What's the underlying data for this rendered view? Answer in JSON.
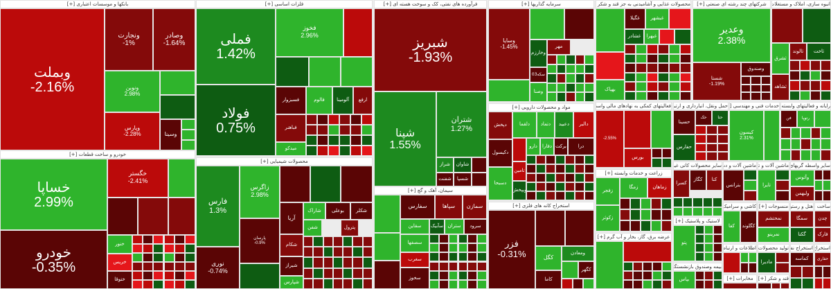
{
  "palette": {
    "R1": "#5a0505",
    "R2": "#840a0a",
    "R3": "#bb0a0a",
    "R4": "#e5161b",
    "G1": "#0e5c12",
    "G2": "#1d8a1f",
    "G3": "#2fb42c"
  },
  "expand_label": "[+]",
  "sectors": [
    {
      "title": "بانکها و موسسات اعتباری",
      "tiles": [
        {
          "s": "وبملت",
          "c": "-2.16%",
          "k": "R3"
        },
        {
          "s": "ونجارت",
          "c": "-1%",
          "k": "R2"
        },
        {
          "s": "وصادر",
          "c": "-1.64%",
          "k": "R2"
        },
        {
          "s": "ونوین",
          "c": "2.98%",
          "k": "G3"
        },
        {
          "s": "",
          "c": "",
          "k": "G3"
        },
        {
          "s": "",
          "c": "",
          "k": "G1"
        },
        {
          "s": "وپارس",
          "c": "-2.28%",
          "k": "R3"
        },
        {
          "s": "وسینا",
          "c": "",
          "k": "R1"
        }
      ],
      "filler": [
        "G3",
        "R1",
        "G3",
        "G1"
      ]
    },
    {
      "title": "خودرو و ساخت قطعات",
      "tiles": [
        {
          "s": "خساپا",
          "c": "2.99%",
          "k": "G3"
        },
        {
          "s": "خودرو",
          "c": "-0.35%",
          "k": "R1"
        },
        {
          "s": "خگستر",
          "c": "-2.41%",
          "k": "R3"
        },
        {
          "s": "",
          "c": "",
          "k": "G3"
        },
        {
          "s": "",
          "c": "",
          "k": "R1"
        },
        {
          "s": "",
          "c": "",
          "k": "R2"
        },
        {
          "s": "",
          "c": "",
          "k": "R2"
        },
        {
          "s": "خنور",
          "c": "",
          "k": "G3"
        },
        {
          "s": "خریس",
          "c": "",
          "k": "R4"
        },
        {
          "s": "ختوقا",
          "c": "",
          "k": "R1"
        }
      ],
      "filler": [
        "R3",
        "G1",
        "R1",
        "R2",
        "R4",
        "R3",
        "G3",
        "R2",
        "R1",
        "R4",
        "G1",
        "R2"
      ]
    },
    {
      "title": "فلزات اساسی",
      "tiles": [
        {
          "s": "فملی",
          "c": "1.42%",
          "k": "G2"
        },
        {
          "s": "فولاد",
          "c": "0.75%",
          "k": "G1"
        },
        {
          "s": "فخوز",
          "c": "2.96%",
          "k": "G3"
        },
        {
          "s": "",
          "c": "",
          "k": "R3"
        },
        {
          "s": "",
          "c": "",
          "k": "G1"
        },
        {
          "s": "",
          "c": "",
          "k": "G3"
        },
        {
          "s": "",
          "c": "",
          "k": "G3"
        },
        {
          "s": "فسبزوار",
          "c": "",
          "k": "R1"
        },
        {
          "s": "فالوم",
          "c": "",
          "k": "G3"
        },
        {
          "s": "آلومینا",
          "c": "",
          "k": "G1"
        },
        {
          "s": "ارفع",
          "c": "",
          "k": "R2"
        },
        {
          "s": "فباهنر",
          "c": "",
          "k": "R2"
        },
        {
          "s": "میدکو",
          "c": "",
          "k": "G3"
        }
      ],
      "filler": [
        "R2",
        "G3",
        "R1",
        "G1",
        "R3",
        "R2",
        "G1",
        "R4",
        "R1",
        "R2",
        "G1",
        "R3"
      ]
    },
    {
      "title": "محصولات شیمیایی",
      "tiles": [
        {
          "s": "فارس",
          "c": "1.3%",
          "k": "G2"
        },
        {
          "s": "نوری",
          "c": "-0.74%",
          "k": "R1"
        },
        {
          "s": "زاگرس",
          "c": "2.98%",
          "k": "G3"
        },
        {
          "s": "پارسان",
          "c": "-0.9%",
          "k": "R1"
        },
        {
          "s": "",
          "c": "",
          "k": "G1"
        },
        {
          "s": "",
          "c": "",
          "k": "R1"
        },
        {
          "s": "",
          "c": "",
          "k": "G1"
        },
        {
          "s": "",
          "c": "",
          "k": "R1"
        },
        {
          "s": "آریا",
          "c": "",
          "k": "R1"
        },
        {
          "s": "شاراک",
          "c": "",
          "k": "G3"
        },
        {
          "s": "بوعلی",
          "c": "",
          "k": "R1"
        },
        {
          "s": "شکلر",
          "c": "",
          "k": "R1"
        },
        {
          "s": "شفن",
          "c": "",
          "k": "G3"
        },
        {
          "s": "پترول",
          "c": "",
          "k": "R2"
        },
        {
          "s": "شکام",
          "c": "",
          "k": "R2"
        },
        {
          "s": "شیراز",
          "c": "",
          "k": "R1"
        },
        {
          "s": "شپارس",
          "c": "",
          "k": "G3"
        }
      ],
      "filler": [
        "R2",
        "G2",
        "R1",
        "G3",
        "R2",
        "G1",
        "R3",
        "R1",
        "G1",
        "R2",
        "G3",
        "R1"
      ]
    },
    {
      "title": "فرآورده های نفتی، کک و سوخت هسته ای",
      "tiles": [
        {
          "s": "شبریز",
          "c": "-1.93%",
          "k": "R2"
        },
        {
          "s": "شپنا",
          "c": "1.55%",
          "k": "G2"
        },
        {
          "s": "شتران",
          "c": "1.27%",
          "k": "G2"
        },
        {
          "s": "شراز",
          "c": "",
          "k": "G2"
        },
        {
          "s": "شاوان",
          "c": "",
          "k": "G1"
        },
        {
          "s": "",
          "c": "",
          "k": "R1"
        },
        {
          "s": "شفنت",
          "c": "",
          "k": "R1"
        },
        {
          "s": "شسپا",
          "c": "",
          "k": "R1"
        },
        {
          "s": "",
          "c": "",
          "k": "R1"
        }
      ],
      "filler": []
    },
    {
      "title": "سیمان، آهک و گچ",
      "tiles": [
        {
          "s": "",
          "c": "",
          "k": "G3"
        },
        {
          "s": "سفارس",
          "c": "",
          "k": "R1"
        },
        {
          "s": "سپاها",
          "c": "",
          "k": "R2"
        },
        {
          "s": "سمازن",
          "c": "",
          "k": "R2"
        },
        {
          "s": "سقاین",
          "c": "",
          "k": "G3"
        },
        {
          "s": "سآبیک",
          "c": "",
          "k": "G1"
        },
        {
          "s": "ستران",
          "c": "",
          "k": "G3"
        },
        {
          "s": "سرود",
          "c": "",
          "k": "R1"
        },
        {
          "s": "",
          "c": "",
          "k": "G3"
        },
        {
          "s": "سصفها",
          "c": "",
          "k": "G3"
        },
        {
          "s": "سغرب",
          "c": "",
          "k": "R3"
        },
        {
          "s": "سخوز",
          "c": "",
          "k": "R1"
        },
        {
          "s": "",
          "c": "",
          "k": "R1"
        }
      ],
      "filler": [
        "G1",
        "G3",
        "R1",
        "R2",
        "G3",
        "R1",
        "G1",
        "R2",
        "R1",
        "G3",
        "G1",
        "R2"
      ]
    },
    {
      "title": "سرمایه گذاریها",
      "tiles": [
        {
          "s": "وسایا",
          "c": "-1.45%",
          "k": "R2"
        },
        {
          "s": "",
          "c": "",
          "k": "G3"
        },
        {
          "s": "",
          "c": "",
          "k": "R1"
        },
        {
          "s": "وخارزم",
          "c": "",
          "k": "G1"
        },
        {
          "s": "مهر",
          "c": "",
          "k": "R2"
        },
        {
          "s": "03سکه",
          "c": "",
          "k": "R1"
        },
        {
          "s": "",
          "c": "",
          "k": "G3"
        },
        {
          "s": "وصنا",
          "c": "",
          "k": "G3"
        }
      ],
      "filler": [
        "R2",
        "R1",
        "G3",
        "R3",
        "G1",
        "R2",
        "G3",
        "R1",
        "G3",
        "R1",
        "G1",
        "R2"
      ]
    },
    {
      "title": "مواد و محصولات دارویی",
      "tiles": [
        {
          "s": "دپخش",
          "c": "",
          "k": "R2"
        },
        {
          "s": "دلقما",
          "c": "",
          "k": "G3"
        },
        {
          "s": "دتماد",
          "c": "",
          "k": "G3"
        },
        {
          "s": "دعبید",
          "c": "",
          "k": "G2"
        },
        {
          "s": "دالبر",
          "c": "",
          "k": "R3"
        },
        {
          "s": "دکیسول",
          "c": "",
          "k": "R1"
        },
        {
          "s": "",
          "c": "",
          "k": "R3"
        },
        {
          "s": "دارو",
          "c": "",
          "k": "G3"
        },
        {
          "s": "دفارا",
          "c": "",
          "k": "G3"
        },
        {
          "s": "برکت",
          "c": "",
          "k": "R1"
        },
        {
          "s": "درا",
          "c": "",
          "k": "R1"
        },
        {
          "s": "دسبحا",
          "c": "",
          "k": "G3"
        },
        {
          "s": "تامین",
          "c": "",
          "k": "R3"
        },
        {
          "s": "ویپخش",
          "c": "",
          "k": "G1"
        }
      ],
      "filler": [
        "G1",
        "R3",
        "R2",
        "G3",
        "R1",
        "G3",
        "R3",
        "G2",
        "R2",
        "G1",
        "R1",
        "G3"
      ]
    },
    {
      "title": "استخراج کانه های فلزی",
      "tiles": [
        {
          "s": "فزر",
          "c": "-0.31%",
          "k": "R1"
        },
        {
          "s": "",
          "c": "",
          "k": "R1"
        },
        {
          "s": "",
          "c": "",
          "k": "R1"
        },
        {
          "s": "کگل",
          "c": "",
          "k": "G3"
        },
        {
          "s": "ومعادن",
          "c": "",
          "k": "G2"
        },
        {
          "s": "کاما",
          "c": "",
          "k": "R1"
        },
        {
          "s": "کگهر",
          "c": "",
          "k": "R1"
        },
        {
          "s": "",
          "c": "",
          "k": "G3"
        }
      ],
      "filler": [
        "R3",
        "G3",
        "R1"
      ]
    },
    {
      "title": "محصولات غذایی و آشامیدنی به جز قند و شکر",
      "tiles": [
        {
          "s": "",
          "c": "",
          "k": "G3"
        },
        {
          "s": "",
          "c": "",
          "k": "R4"
        },
        {
          "s": "بهپاک",
          "c": "",
          "k": "G3"
        },
        {
          "s": "غگیلا",
          "c": "",
          "k": "R1"
        },
        {
          "s": "غبشهر",
          "c": "",
          "k": "G3"
        },
        {
          "s": "",
          "c": "",
          "k": "R4"
        },
        {
          "s": "غشادر",
          "c": "",
          "k": "G1"
        },
        {
          "s": "غبهرا",
          "c": "",
          "k": "G3"
        },
        {
          "s": "",
          "c": "",
          "k": "R4"
        },
        {
          "s": "",
          "c": "",
          "k": "G1"
        }
      ],
      "filler": [
        "R2",
        "R1",
        "R2",
        "G1",
        "R3",
        "G3",
        "R1",
        "R4",
        "G3",
        "G1",
        "R2",
        "G3"
      ]
    },
    {
      "title": "شرکتهای چند رشته ای صنعتی",
      "tiles": [
        {
          "s": "وعدیر",
          "c": "2.38%",
          "k": "G3"
        },
        {
          "s": "شستا",
          "c": "-1.19%",
          "k": "R2"
        },
        {
          "s": "وصندوق",
          "c": "",
          "k": "R1"
        }
      ],
      "filler": [
        "R1",
        "R2",
        "R1",
        "G3"
      ]
    },
    {
      "title": "انبوه سازی، املاک و مستغلات",
      "tiles": [
        {
          "s": "",
          "c": "",
          "k": "R2"
        },
        {
          "s": "",
          "c": "",
          "k": "G1"
        },
        {
          "s": "ثشرق",
          "c": "",
          "k": "G3"
        },
        {
          "s": "ثالوند",
          "c": "",
          "k": "R2"
        },
        {
          "s": "ثاخت",
          "c": "",
          "k": "G1"
        },
        {
          "s": "ثشاهد",
          "c": "",
          "k": "R2"
        }
      ],
      "filler": [
        "R2",
        "R1",
        "R3",
        "G1",
        "R2",
        "G3"
      ]
    },
    {
      "title": "فعالیتهای کمکی به نهادهای مالی واسط",
      "tiles": [
        {
          "s": "",
          "c": "-2.55%",
          "k": "R3"
        },
        {
          "s": "",
          "c": "",
          "k": "R3"
        },
        {
          "s": "",
          "c": "",
          "k": "G3"
        },
        {
          "s": "بورس",
          "c": "",
          "k": "R3"
        }
      ],
      "filler": [
        "R1",
        "G1",
        "G3",
        "R2"
      ]
    },
    {
      "title": "حمل ونقل، انبارداری و ارتباطات",
      "tiles": [
        {
          "s": "حسینا",
          "c": "",
          "k": "R1"
        },
        {
          "s": "حک",
          "c": "",
          "k": "R1"
        },
        {
          "s": "حتا",
          "c": "",
          "k": "G1"
        },
        {
          "s": "حفارس",
          "c": "",
          "k": "G1"
        }
      ],
      "filler": [
        "R3",
        "R1",
        "R2",
        "G3",
        "R2",
        "G1"
      ]
    },
    {
      "title": "خدمات فنی و مهندسی",
      "tiles": [
        {
          "s": "کیسون",
          "c": "2.31%",
          "k": "G3"
        },
        {
          "s": "",
          "c": "",
          "k": "G3"
        }
      ],
      "filler": []
    },
    {
      "title": "رایانه و فعالیتهای وابسته",
      "tiles": [
        {
          "s": "فن",
          "c": "",
          "k": "R1"
        },
        {
          "s": "رتوپا",
          "c": "",
          "k": "G3"
        },
        {
          "s": "",
          "c": "",
          "k": "G3"
        }
      ],
      "filler": [
        "R2",
        "G3",
        "G3",
        "R1",
        "G3",
        "R3"
      ]
    },
    {
      "title": "زراعت و خدمات وابسته",
      "tiles": [
        {
          "s": "زفجر",
          "c": "",
          "k": "G3"
        },
        {
          "s": "زمگا",
          "c": "",
          "k": "G3"
        },
        {
          "s": "زماهان",
          "c": "",
          "k": "R3"
        },
        {
          "s": "زکوثر",
          "c": "",
          "k": "G3"
        }
      ],
      "filler": [
        "R1",
        "G1",
        "G3",
        "R2",
        "G1",
        "G3",
        "R1"
      ]
    },
    {
      "title": "عرضه برق، گاز، بخار و آب گرم",
      "tiles": [
        {
          "s": "",
          "c": "",
          "k": "G3"
        },
        {
          "s": "",
          "c": "",
          "k": "R3"
        }
      ],
      "filler": [
        "G1",
        "R1",
        "G3",
        "R2",
        "R1"
      ]
    },
    {
      "title": "سایر محصولات کانی غیرفلزی",
      "tiles": [
        {
          "s": "کسرا",
          "c": "",
          "k": "R2"
        },
        {
          "s": "کگاز",
          "c": "",
          "k": "R1"
        },
        {
          "s": "کنا",
          "c": "",
          "k": "R2"
        }
      ],
      "filler": [
        "G1",
        "R1",
        "G3",
        "R2"
      ]
    },
    {
      "title": "لاستیک و پلاستیک",
      "tiles": [
        {
          "s": "پتو",
          "c": "",
          "k": "G3"
        }
      ],
      "filler": [
        "G1",
        "R1",
        "G3"
      ]
    },
    {
      "title": "بیمه وصندوق بازنشستگی",
      "tiles": [
        {
          "s": "بپاس",
          "c": "",
          "k": "G3"
        }
      ],
      "filler": [
        "R1",
        "G1",
        "R2"
      ]
    },
    {
      "title": "ماشین آلات و دستگاههای برقی",
      "tiles": [
        {
          "s": "بترانس",
          "c": "",
          "k": "R1"
        }
      ],
      "filler": [
        "G1",
        "G3",
        "R2"
      ]
    },
    {
      "title": "کاشی و سرامیک",
      "tiles": [
        {
          "s": "کفا",
          "c": "",
          "k": "G3"
        },
        {
          "s": "کگلوند",
          "c": "",
          "k": "R1"
        }
      ],
      "filler": [
        "G1",
        "R2"
      ]
    },
    {
      "title": "اطلاعات و ارتباطات",
      "tiles": [
        {
          "s": "",
          "c": "",
          "k": "R3"
        }
      ],
      "filler": [
        "G3",
        "R1"
      ]
    },
    {
      "title": "مخابرات",
      "tiles": [
        {
          "s": "",
          "c": "",
          "k": "R2"
        }
      ],
      "filler": []
    },
    {
      "title": "ماشین آلات و تجهیزات",
      "tiles": [
        {
          "s": "تایرا",
          "c": "",
          "k": "G3"
        }
      ],
      "filler": [
        "G1",
        "R2",
        "R1"
      ]
    },
    {
      "title": "منسوجات",
      "tiles": [
        {
          "s": "نمحتشم",
          "c": "",
          "k": "R2"
        },
        {
          "s": "نمرینو",
          "c": "",
          "k": "G3"
        }
      ],
      "filler": []
    },
    {
      "title": "تولید محصولات کامپیوتری",
      "tiles": [
        {
          "s": "مادیرا",
          "c": "",
          "k": "G1"
        }
      ],
      "filler": [
        "R2"
      ]
    },
    {
      "title": "قند و شکر",
      "tiles": [
        {
          "s": "",
          "c": "",
          "k": "R1"
        }
      ],
      "filler": [
        "R2",
        "G1"
      ]
    },
    {
      "title": "سایر واسطه گریهای مالی",
      "tiles": [
        {
          "s": "وآتوس",
          "c": "",
          "k": "G3"
        },
        {
          "s": "ولبهمن",
          "c": "",
          "k": "R2"
        }
      ],
      "filler": [
        "R1",
        "G3"
      ]
    },
    {
      "title": "هتل و رستوران",
      "tiles": [
        {
          "s": "سمگا",
          "c": "",
          "k": "R2"
        },
        {
          "s": "گکنا",
          "c": "",
          "k": "G1"
        }
      ],
      "filler": []
    },
    {
      "title": "ساخت محصولات فلزی",
      "tiles": [
        {
          "s": "چدن",
          "c": "",
          "k": "R2"
        },
        {
          "s": "فارک",
          "c": "",
          "k": "R2"
        }
      ],
      "filler": []
    },
    {
      "title": "استخراج نفت",
      "tiles": [
        {
          "s": "کماسه",
          "c": "",
          "k": "R1"
        }
      ],
      "filler": [
        "R2",
        "G1"
      ]
    },
    {
      "title": "استخراج ذغال سنگ",
      "tiles": [
        {
          "s": "حفاری",
          "c": "",
          "k": "R2"
        }
      ],
      "filler": [
        "R1",
        "R3"
      ]
    }
  ]
}
